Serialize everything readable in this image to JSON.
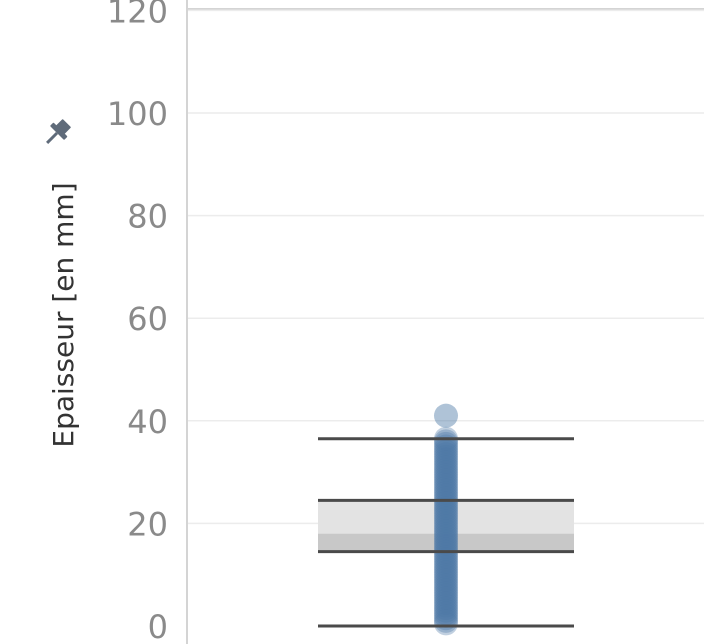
{
  "chart_data": {
    "type": "scatter",
    "ylabel": "Epaisseur [en mm]",
    "ylim": [
      -2,
      122
    ],
    "y_ticks": [
      {
        "value": 0,
        "label": "0"
      },
      {
        "value": 20,
        "label": "20"
      },
      {
        "value": 40,
        "label": "40"
      },
      {
        "value": 60,
        "label": "60"
      },
      {
        "value": 80,
        "label": "80"
      },
      {
        "value": 100,
        "label": "100"
      },
      {
        "value": 120,
        "label": "120"
      }
    ],
    "grid": true,
    "boxplot": {
      "lower_whisker": 0,
      "q1": 14.5,
      "median": 18,
      "q3": 24.5,
      "upper_whisker": 36.5
    },
    "points": [
      0.5,
      1,
      1.5,
      2,
      2.5,
      3,
      3.5,
      4,
      4.5,
      5,
      5.5,
      6,
      6.5,
      7,
      7.5,
      8,
      8.5,
      9,
      9.5,
      10,
      10.5,
      11,
      11.5,
      12,
      12.5,
      13,
      13.5,
      14,
      14.5,
      15,
      15.5,
      16,
      16.5,
      17,
      17.5,
      18,
      18.5,
      19,
      19.5,
      20,
      20.5,
      21,
      21.5,
      22,
      22.5,
      23,
      23.5,
      24,
      24.5,
      25,
      25.5,
      26,
      26.5,
      27,
      27.5,
      28,
      28.5,
      29,
      29.5,
      30,
      30.5,
      31,
      31.5,
      32,
      32.5,
      33,
      33.5,
      34,
      34.5,
      35,
      35.5,
      36,
      36.5,
      41
    ],
    "colors": {
      "point": "#4e79a7",
      "box_upper": "#e3e3e3",
      "box_lower": "#c8c8c8",
      "whisker": "#4a4a4a",
      "gridline": "#ececec",
      "axis_line": "#d4d4d4",
      "pin_icon": "#5f6b7a"
    },
    "pin_icon": "pushpin-icon"
  }
}
